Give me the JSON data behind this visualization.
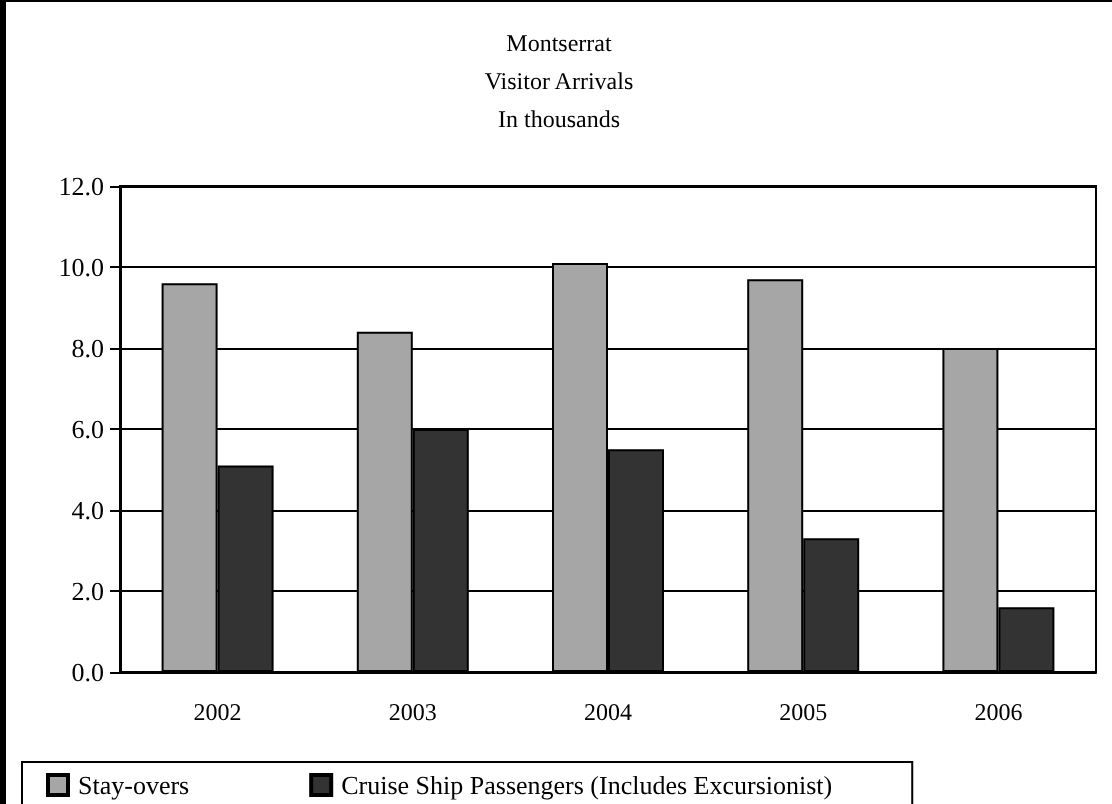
{
  "chart_data": {
    "type": "bar",
    "title": "Montserrat\nVisitor Arrivals\nIn thousands",
    "categories": [
      "2002",
      "2003",
      "2004",
      "2005",
      "2006"
    ],
    "series": [
      {
        "name": "Stay-overs",
        "color": "#a6a6a6",
        "values": [
          9.6,
          8.4,
          10.1,
          9.7,
          8.0
        ]
      },
      {
        "name": "Cruise Ship Passengers (Includes Excursionist)",
        "color": "#333333",
        "values": [
          5.1,
          6.0,
          5.5,
          3.3,
          1.6
        ]
      }
    ],
    "ylim": [
      0,
      12
    ],
    "yticks": [
      {
        "value": 0,
        "label": "0.0"
      },
      {
        "value": 2,
        "label": "2.0"
      },
      {
        "value": 4,
        "label": "4.0"
      },
      {
        "value": 6,
        "label": "6.0"
      },
      {
        "value": 8,
        "label": "8.0"
      },
      {
        "value": 10,
        "label": "10.0"
      },
      {
        "value": 12,
        "label": "12.0"
      }
    ],
    "grid": "y",
    "legend": "bottom"
  }
}
